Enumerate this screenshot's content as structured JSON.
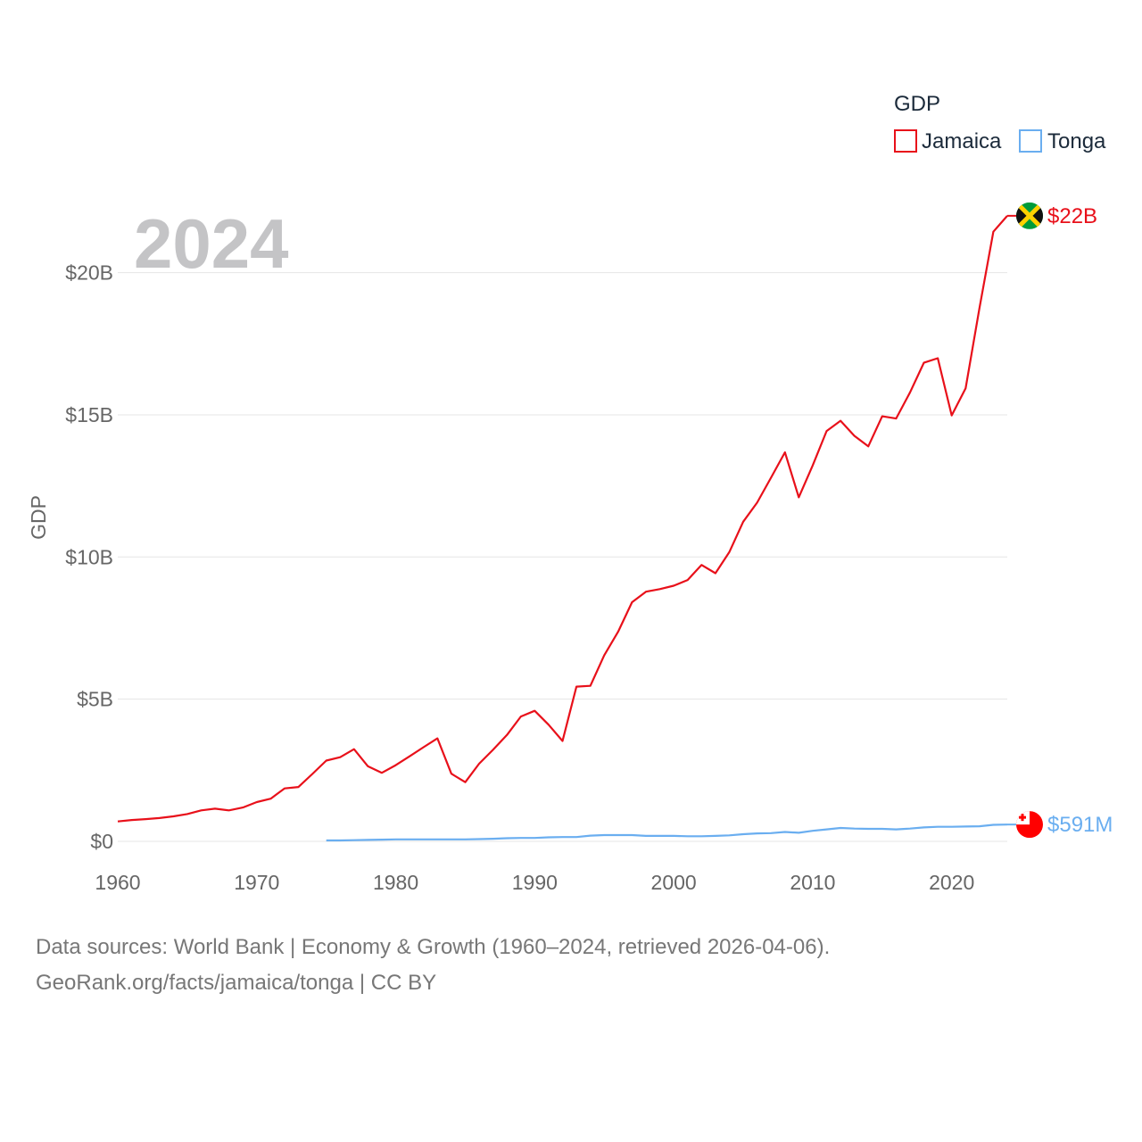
{
  "chart_data": {
    "type": "line",
    "legend_title": "GDP",
    "current_year": "2024",
    "ylabel": "GDP",
    "xlim": [
      1960,
      2024
    ],
    "ylim": [
      0,
      23
    ],
    "y_ticks": [
      {
        "value": 0,
        "label": "$0"
      },
      {
        "value": 5,
        "label": "$5B"
      },
      {
        "value": 10,
        "label": "$10B"
      },
      {
        "value": 15,
        "label": "$15B"
      },
      {
        "value": 20,
        "label": "$20B"
      }
    ],
    "x_ticks": [
      "1960",
      "1970",
      "1980",
      "1990",
      "2000",
      "2010",
      "2020"
    ],
    "series": [
      {
        "name": "Jamaica",
        "color": "#e8101a",
        "end_label": "$22B",
        "flag_icon": "jamaica-flag-icon",
        "x": [
          1960,
          1961,
          1962,
          1963,
          1964,
          1965,
          1966,
          1967,
          1968,
          1969,
          1970,
          1971,
          1972,
          1973,
          1974,
          1975,
          1976,
          1977,
          1978,
          1979,
          1980,
          1981,
          1982,
          1983,
          1984,
          1985,
          1986,
          1987,
          1988,
          1989,
          1990,
          1991,
          1992,
          1993,
          1994,
          1995,
          1996,
          1997,
          1998,
          1999,
          2000,
          2001,
          2002,
          2003,
          2004,
          2005,
          2006,
          2007,
          2008,
          2009,
          2010,
          2011,
          2012,
          2013,
          2014,
          2015,
          2016,
          2017,
          2018,
          2019,
          2020,
          2021,
          2022,
          2023,
          2024
        ],
        "values": [
          0.7,
          0.75,
          0.78,
          0.82,
          0.88,
          0.96,
          1.09,
          1.15,
          1.09,
          1.19,
          1.38,
          1.5,
          1.86,
          1.91,
          2.37,
          2.84,
          2.96,
          3.24,
          2.64,
          2.41,
          2.68,
          2.99,
          3.31,
          3.62,
          2.38,
          2.08,
          2.73,
          3.22,
          3.74,
          4.39,
          4.59,
          4.1,
          3.53,
          5.44,
          5.47,
          6.54,
          7.37,
          8.41,
          8.78,
          8.87,
          8.99,
          9.19,
          9.72,
          9.43,
          10.17,
          11.24,
          11.91,
          12.79,
          13.68,
          12.1,
          13.22,
          14.43,
          14.79,
          14.26,
          13.89,
          14.95,
          14.87,
          15.79,
          16.83,
          16.99,
          14.98,
          15.93,
          18.75,
          21.44,
          22.0
        ]
      },
      {
        "name": "Tonga",
        "color": "#6aaef0",
        "end_label": "$591M",
        "flag_icon": "tonga-flag-icon",
        "x": [
          1975,
          1976,
          1977,
          1978,
          1979,
          1980,
          1981,
          1982,
          1983,
          1984,
          1985,
          1986,
          1987,
          1988,
          1989,
          1990,
          1991,
          1992,
          1993,
          1994,
          1995,
          1996,
          1997,
          1998,
          1999,
          2000,
          2001,
          2002,
          2003,
          2004,
          2005,
          2006,
          2007,
          2008,
          2009,
          2010,
          2011,
          2012,
          2013,
          2014,
          2015,
          2016,
          2017,
          2018,
          2019,
          2020,
          2021,
          2022,
          2023,
          2024
        ],
        "values": [
          0.03,
          0.03,
          0.04,
          0.05,
          0.06,
          0.07,
          0.07,
          0.07,
          0.07,
          0.07,
          0.07,
          0.08,
          0.09,
          0.11,
          0.12,
          0.12,
          0.14,
          0.15,
          0.15,
          0.2,
          0.22,
          0.22,
          0.22,
          0.19,
          0.19,
          0.19,
          0.18,
          0.18,
          0.19,
          0.21,
          0.25,
          0.28,
          0.29,
          0.33,
          0.3,
          0.37,
          0.42,
          0.47,
          0.45,
          0.44,
          0.44,
          0.42,
          0.45,
          0.49,
          0.51,
          0.51,
          0.52,
          0.53,
          0.58,
          0.591
        ]
      }
    ]
  },
  "footer": {
    "line1": "Data sources: World Bank | Economy & Growth (1960–2024, retrieved 2026-04-06).",
    "line2": "GeoRank.org/facts/jamaica/tonga | CC BY"
  }
}
